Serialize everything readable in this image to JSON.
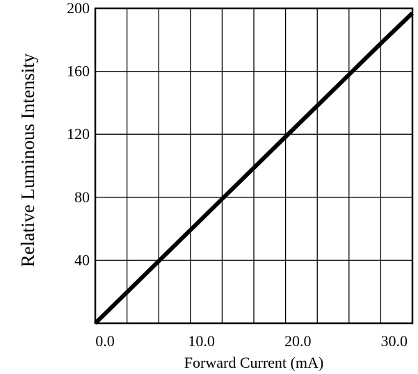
{
  "chart_data": {
    "type": "line",
    "title": "",
    "xlabel": "Forward Current (mA)",
    "ylabel": "Relative Luminous Intensity",
    "xlim": [
      0,
      32.9
    ],
    "ylim": [
      0,
      200
    ],
    "grid": true,
    "x_ticks": [
      0,
      10,
      20,
      30
    ],
    "x_tick_labels": [
      "0.0",
      "10.0",
      "20.0",
      "30.0"
    ],
    "y_ticks": [
      40,
      80,
      120,
      160,
      200
    ],
    "y_tick_labels": [
      "40",
      "80",
      "120",
      "160",
      "200"
    ],
    "series": [
      {
        "color": "#000000",
        "x": [
          0,
          5,
          10,
          15,
          20,
          25,
          30,
          32.9
        ],
        "y": [
          0,
          30,
          60,
          90,
          120,
          150,
          180,
          197
        ]
      }
    ]
  }
}
